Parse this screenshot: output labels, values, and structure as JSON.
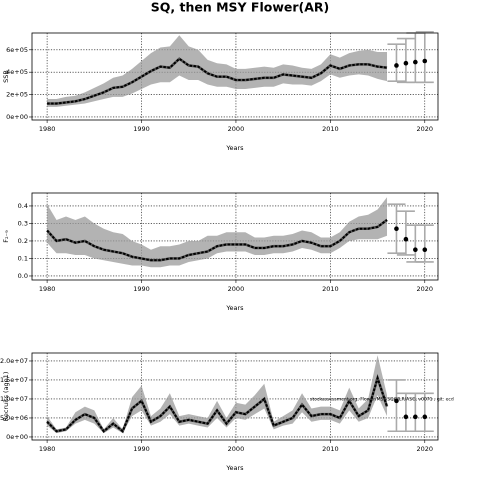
{
  "title": "SQ, then MSY Flower(AR)",
  "chart_data": [
    {
      "type": "line",
      "ylabel": "SSB",
      "xlabel": "Years",
      "x": [
        1980,
        1981,
        1982,
        1983,
        1984,
        1985,
        1986,
        1987,
        1988,
        1989,
        1990,
        1991,
        1992,
        1993,
        1994,
        1995,
        1996,
        1997,
        1998,
        1999,
        2000,
        2001,
        2002,
        2003,
        2004,
        2005,
        2006,
        2007,
        2008,
        2009,
        2010,
        2011,
        2012,
        2013,
        2014,
        2015,
        2016
      ],
      "values": [
        120000,
        120000,
        130000,
        140000,
        160000,
        190000,
        220000,
        260000,
        270000,
        310000,
        360000,
        410000,
        450000,
        440000,
        520000,
        460000,
        450000,
        390000,
        360000,
        360000,
        330000,
        330000,
        340000,
        350000,
        350000,
        380000,
        370000,
        360000,
        350000,
        390000,
        460000,
        430000,
        460000,
        470000,
        470000,
        450000,
        440000
      ],
      "lower": [
        90000,
        90000,
        100000,
        110000,
        120000,
        140000,
        160000,
        180000,
        180000,
        210000,
        250000,
        290000,
        310000,
        310000,
        370000,
        330000,
        330000,
        290000,
        270000,
        270000,
        250000,
        250000,
        260000,
        270000,
        270000,
        300000,
        290000,
        290000,
        280000,
        320000,
        380000,
        350000,
        370000,
        380000,
        370000,
        340000,
        320000
      ],
      "upper": [
        160000,
        160000,
        180000,
        190000,
        220000,
        260000,
        300000,
        350000,
        370000,
        430000,
        500000,
        570000,
        620000,
        630000,
        730000,
        630000,
        600000,
        510000,
        480000,
        470000,
        430000,
        430000,
        440000,
        450000,
        440000,
        470000,
        460000,
        440000,
        430000,
        470000,
        560000,
        530000,
        570000,
        590000,
        600000,
        580000,
        580000
      ],
      "proj_x": [
        2017,
        2018,
        2019,
        2020
      ],
      "proj_values": [
        460000,
        480000,
        490000,
        500000
      ],
      "proj_lower": [
        320000,
        310000,
        310000,
        310000
      ],
      "proj_upper": [
        650000,
        700000,
        750000,
        760000
      ],
      "xlim": [
        1978.4,
        2021.4
      ],
      "xticks": [
        1980,
        1990,
        2000,
        2010,
        2020
      ],
      "ylim": [
        -27000,
        750000
      ],
      "yticks": [
        {
          "value": 0,
          "label": "0e+00"
        },
        {
          "value": 200000,
          "label": "2e+05"
        },
        {
          "value": 400000,
          "label": "4e+05"
        },
        {
          "value": 600000,
          "label": "6e+05"
        }
      ],
      "grid": true
    },
    {
      "type": "line",
      "ylabel": "F₂₋₉",
      "xlabel": "Years",
      "x": [
        1980,
        1981,
        1982,
        1983,
        1984,
        1985,
        1986,
        1987,
        1988,
        1989,
        1990,
        1991,
        1992,
        1993,
        1994,
        1995,
        1996,
        1997,
        1998,
        1999,
        2000,
        2001,
        2002,
        2003,
        2004,
        2005,
        2006,
        2007,
        2008,
        2009,
        2010,
        2011,
        2012,
        2013,
        2014,
        2015,
        2016
      ],
      "values": [
        0.26,
        0.2,
        0.21,
        0.19,
        0.2,
        0.17,
        0.15,
        0.14,
        0.13,
        0.11,
        0.1,
        0.09,
        0.09,
        0.1,
        0.1,
        0.12,
        0.13,
        0.14,
        0.17,
        0.18,
        0.18,
        0.18,
        0.16,
        0.16,
        0.17,
        0.17,
        0.18,
        0.2,
        0.19,
        0.17,
        0.17,
        0.2,
        0.25,
        0.27,
        0.27,
        0.28,
        0.32
      ],
      "lower": [
        0.19,
        0.13,
        0.13,
        0.12,
        0.12,
        0.1,
        0.09,
        0.08,
        0.07,
        0.06,
        0.06,
        0.05,
        0.05,
        0.06,
        0.06,
        0.08,
        0.09,
        0.1,
        0.13,
        0.14,
        0.14,
        0.14,
        0.12,
        0.12,
        0.13,
        0.13,
        0.14,
        0.16,
        0.15,
        0.13,
        0.13,
        0.16,
        0.2,
        0.21,
        0.21,
        0.21,
        0.23
      ],
      "upper": [
        0.41,
        0.32,
        0.34,
        0.32,
        0.34,
        0.3,
        0.27,
        0.25,
        0.24,
        0.2,
        0.18,
        0.15,
        0.17,
        0.17,
        0.18,
        0.2,
        0.2,
        0.23,
        0.23,
        0.25,
        0.25,
        0.25,
        0.22,
        0.22,
        0.23,
        0.23,
        0.24,
        0.26,
        0.25,
        0.22,
        0.22,
        0.25,
        0.31,
        0.34,
        0.35,
        0.38,
        0.45
      ],
      "proj_x": [
        2017,
        2018,
        2019,
        2020
      ],
      "proj_values": [
        0.27,
        0.21,
        0.15,
        0.15
      ],
      "proj_lower": [
        0.13,
        0.12,
        0.08,
        0.08
      ],
      "proj_upper": [
        0.41,
        0.37,
        0.29,
        0.29
      ],
      "xlim": [
        1978.4,
        2021.4
      ],
      "xticks": [
        1980,
        1990,
        2000,
        2010,
        2020
      ],
      "ylim": [
        -0.023,
        0.474
      ],
      "yticks": [
        {
          "value": 0,
          "label": "0.0"
        },
        0.1,
        0.2,
        0.3,
        0.4
      ],
      "grid": true
    },
    {
      "type": "line",
      "ylabel": "Recruits (age1)",
      "xlabel": "Years",
      "annotation": "stockassessment.org, Flower/MSY-SQ/MLR/ASG, v0071 , git: ecd",
      "x": [
        1980,
        1981,
        1982,
        1983,
        1984,
        1985,
        1986,
        1987,
        1988,
        1989,
        1990,
        1991,
        1992,
        1993,
        1994,
        1995,
        1996,
        1997,
        1998,
        1999,
        2000,
        2001,
        2002,
        2003,
        2004,
        2005,
        2006,
        2007,
        2008,
        2009,
        2010,
        2011,
        2012,
        2013,
        2014,
        2015,
        2016
      ],
      "values": [
        4000000,
        1500000,
        2000000,
        4500000,
        6000000,
        5000000,
        1500000,
        3500000,
        1500000,
        7500000,
        9500000,
        4000000,
        5500000,
        8000000,
        4000000,
        4500000,
        4000000,
        3500000,
        7000000,
        3500000,
        6500000,
        6000000,
        8000000,
        10000000,
        3000000,
        4000000,
        5000000,
        8500000,
        5500000,
        6000000,
        6000000,
        5000000,
        9500000,
        5500000,
        7000000,
        15500000,
        8000000
      ],
      "lower": [
        3000000,
        1000000,
        1500000,
        3500000,
        4500000,
        3500000,
        1000000,
        2500000,
        1000000,
        5500000,
        7000000,
        3000000,
        4000000,
        6000000,
        3000000,
        3500000,
        3000000,
        2500000,
        5000000,
        2500000,
        5000000,
        4500000,
        6000000,
        7500000,
        2000000,
        3000000,
        3500000,
        6500000,
        4000000,
        4500000,
        4500000,
        3500000,
        7000000,
        4000000,
        5000000,
        11000000,
        5500000
      ],
      "upper": [
        5500000,
        2000000,
        2500000,
        6500000,
        8000000,
        7000000,
        2000000,
        5000000,
        2000000,
        10500000,
        13500000,
        5500000,
        7500000,
        11500000,
        5500000,
        6000000,
        5500000,
        5000000,
        9500000,
        5000000,
        9000000,
        8500000,
        11000000,
        14000000,
        4000000,
        5500000,
        7000000,
        11500000,
        7500000,
        8000000,
        8000000,
        7000000,
        13000000,
        7500000,
        10000000,
        21500000,
        11000000
      ],
      "proj_x": [
        2017,
        2018,
        2019,
        2020
      ],
      "proj_values": [
        9500000,
        5300000,
        5300000,
        5300000
      ],
      "proj_lower": [
        1500000,
        1500000,
        1500000,
        1500000
      ],
      "proj_upper": [
        15000000,
        11500000,
        11500000,
        11500000
      ],
      "xlim": [
        1978.4,
        2021.4
      ],
      "xticks": [
        1980,
        1990,
        2000,
        2010,
        2020
      ],
      "ylim": [
        -800000,
        22100000
      ],
      "yticks": [
        {
          "value": 0,
          "label": "0e+00"
        },
        {
          "value": 5000000,
          "label": "5.0e+06"
        },
        {
          "value": 10000000,
          "label": "1.0e+07"
        },
        {
          "value": 15000000,
          "label": "1.5e+07"
        },
        {
          "value": 20000000,
          "label": "2.0e+07"
        }
      ],
      "grid": true
    }
  ]
}
